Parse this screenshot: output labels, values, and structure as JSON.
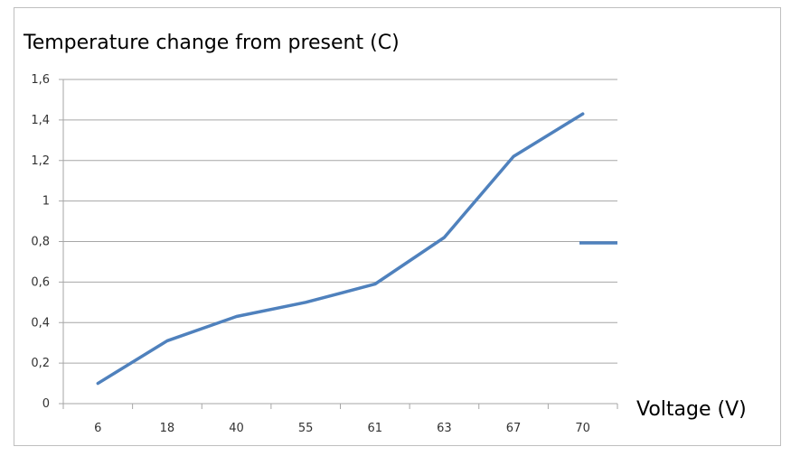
{
  "chart_data": {
    "type": "line",
    "title": "Temperature change from present (C)",
    "xlabel": "Voltage (V)",
    "ylabel": "",
    "categories": [
      "6",
      "18",
      "40",
      "55",
      "61",
      "63",
      "67",
      "70"
    ],
    "series": [
      {
        "values": [
          0.1,
          0.31,
          0.43,
          0.5,
          0.59,
          0.82,
          1.22,
          1.43
        ],
        "color": "#4f81bd"
      }
    ],
    "yticks": [
      "0",
      "0,2",
      "0,4",
      "0,6",
      "0,8",
      "1",
      "1,2",
      "1,4",
      "1,6"
    ],
    "ylim": [
      0,
      1.6
    ],
    "grid": true,
    "legend": {
      "position": "right",
      "visible_text": false,
      "series_color": "#4f81bd"
    }
  }
}
